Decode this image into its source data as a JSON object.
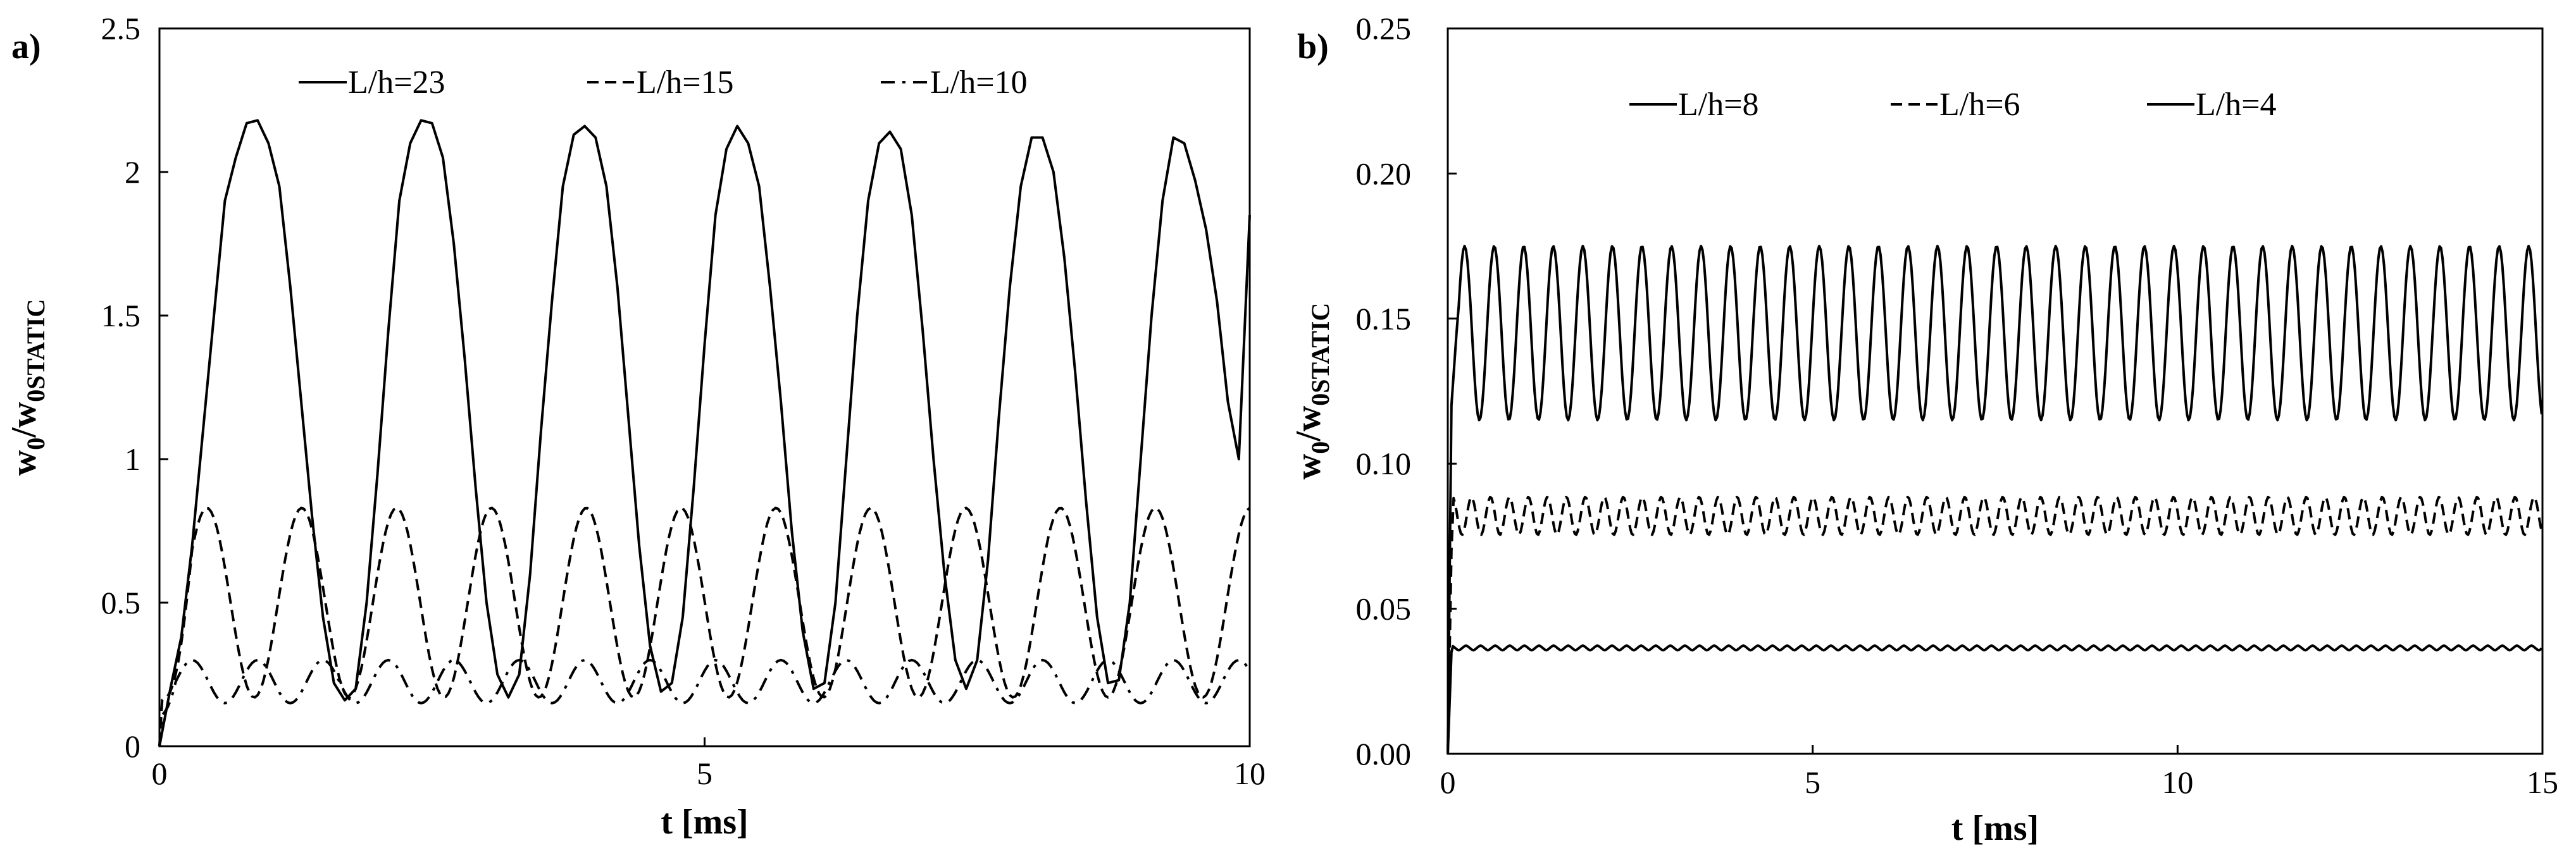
{
  "chart_data": [
    {
      "type": "line",
      "panel_label": "a)",
      "xlabel": "t [ms]",
      "ylabel_main": "w",
      "ylabel_sub0": "0",
      "ylabel_slash": "/w",
      "ylabel_sub1": "0STATIC",
      "xlim": [
        0,
        10
      ],
      "ylim": [
        0,
        2.5
      ],
      "xticks": [
        0,
        5,
        10
      ],
      "xtick_labels": [
        "0",
        "5",
        "10"
      ],
      "yticks": [
        0,
        0.5,
        1,
        1.5,
        2,
        2.5
      ],
      "ytick_labels": [
        "0",
        "0.5",
        "1",
        "1.5",
        "2",
        "2.5"
      ],
      "grid": false,
      "legend_position": "top",
      "series": [
        {
          "name": "L/h=23",
          "style": "solid",
          "x": [
            0,
            0.1,
            0.2,
            0.3,
            0.4,
            0.5,
            0.6,
            0.7,
            0.8,
            0.9,
            1.0,
            1.1,
            1.2,
            1.3,
            1.4,
            1.5,
            1.6,
            1.7,
            1.8,
            1.9,
            2.0,
            2.1,
            2.2,
            2.3,
            2.4,
            2.5,
            2.6,
            2.7,
            2.8,
            2.9,
            3.0,
            3.1,
            3.2,
            3.3,
            3.4,
            3.5,
            3.6,
            3.7,
            3.8,
            3.9,
            4.0,
            4.1,
            4.2,
            4.3,
            4.4,
            4.5,
            4.6,
            4.7,
            4.8,
            4.9,
            5.0,
            5.1,
            5.2,
            5.3,
            5.4,
            5.5,
            5.6,
            5.7,
            5.8,
            5.9,
            6.0,
            6.1,
            6.2,
            6.3,
            6.4,
            6.5,
            6.6,
            6.7,
            6.8,
            6.9,
            7.0,
            7.1,
            7.2,
            7.3,
            7.4,
            7.5,
            7.6,
            7.7,
            7.8,
            7.9,
            8.0,
            8.1,
            8.2,
            8.3,
            8.4,
            8.5,
            8.6,
            8.7,
            8.8,
            8.9,
            9.0,
            9.1,
            9.2,
            9.3,
            9.4,
            9.5,
            9.6,
            9.7,
            9.8,
            9.9,
            10.0
          ],
          "y": [
            0.0,
            0.2,
            0.38,
            0.7,
            1.1,
            1.5,
            1.9,
            2.05,
            2.17,
            2.18,
            2.1,
            1.95,
            1.6,
            1.2,
            0.8,
            0.45,
            0.22,
            0.16,
            0.2,
            0.5,
            0.95,
            1.45,
            1.9,
            2.1,
            2.18,
            2.17,
            2.05,
            1.75,
            1.35,
            0.9,
            0.5,
            0.25,
            0.17,
            0.25,
            0.6,
            1.1,
            1.55,
            1.95,
            2.13,
            2.16,
            2.12,
            1.95,
            1.6,
            1.15,
            0.7,
            0.35,
            0.19,
            0.22,
            0.45,
            0.9,
            1.4,
            1.85,
            2.08,
            2.16,
            2.1,
            1.95,
            1.6,
            1.2,
            0.75,
            0.4,
            0.2,
            0.22,
            0.5,
            1.0,
            1.5,
            1.9,
            2.1,
            2.14,
            2.08,
            1.85,
            1.45,
            1.0,
            0.6,
            0.3,
            0.2,
            0.3,
            0.65,
            1.15,
            1.6,
            1.95,
            2.12,
            2.12,
            2.0,
            1.7,
            1.3,
            0.85,
            0.45,
            0.22,
            0.23,
            0.5,
            1.0,
            1.5,
            1.9,
            2.12,
            2.1,
            1.97,
            1.8,
            1.55,
            1.2,
            1.0,
            1.85
          ]
        },
        {
          "name": "L/h=15",
          "style": "dashed",
          "x": [],
          "y": []
        },
        {
          "name": "L/h=10",
          "style": "dashdot",
          "x": [],
          "y": []
        }
      ]
    },
    {
      "type": "line",
      "panel_label": "b)",
      "xlabel": "t [ms]",
      "ylabel_main": "w",
      "ylabel_sub0": "0",
      "ylabel_slash": "/w",
      "ylabel_sub1": "0STATIC",
      "xlim": [
        0,
        15
      ],
      "ylim": [
        0,
        0.25
      ],
      "xticks": [
        0,
        5,
        10,
        15
      ],
      "xtick_labels": [
        "0",
        "5",
        "10",
        "15"
      ],
      "yticks": [
        0,
        0.05,
        0.1,
        0.15,
        0.2,
        0.25
      ],
      "ytick_labels": [
        "0.00",
        "0.05",
        "0.10",
        "0.15",
        "0.20",
        "0.25"
      ],
      "grid": false,
      "legend_position": "top",
      "series": [
        {
          "name": "L/h=8",
          "style": "solid",
          "x": [],
          "y": []
        },
        {
          "name": "L/h=6",
          "style": "dashed",
          "x": [],
          "y": []
        },
        {
          "name": "L/h=4",
          "style": "solid",
          "x": [],
          "y": []
        }
      ]
    }
  ]
}
